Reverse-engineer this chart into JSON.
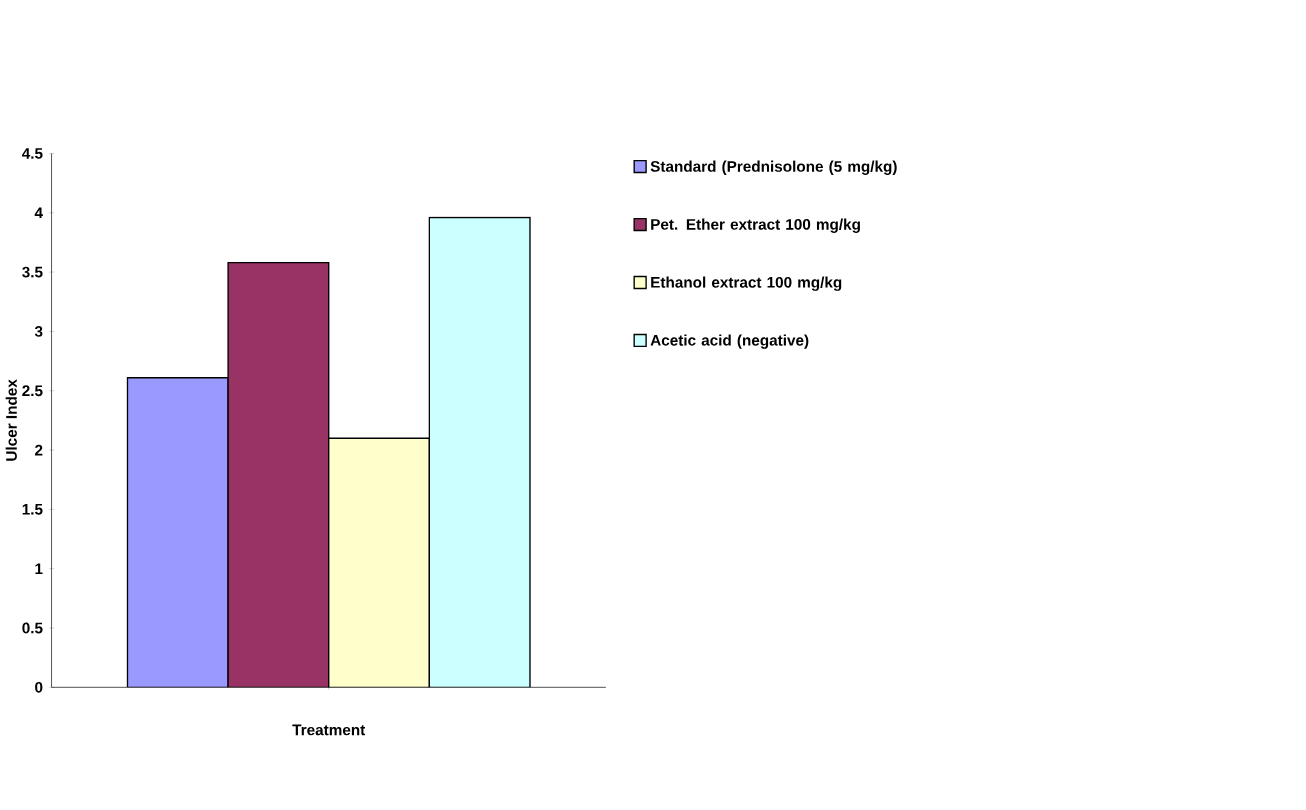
{
  "chart_data": {
    "type": "bar",
    "xlabel": "Treatment",
    "ylabel": "Ulcer Index",
    "categories": [
      null
    ],
    "series": [
      {
        "name": "Standard (Prednisolone (5 mg/kg)",
        "color": "#9999ff",
        "values": [
          2.61
        ]
      },
      {
        "name": "Pet. Ether extract 100 mg/kg",
        "color": "#993366",
        "values": [
          3.58
        ]
      },
      {
        "name": "Ethanol extract 100 mg/kg",
        "color": "#ffffcc",
        "values": [
          2.1
        ]
      },
      {
        "name": "Acetic acid (negative)",
        "color": "#ccffff",
        "values": [
          3.96
        ]
      }
    ],
    "ylim": [
      0,
      4.5
    ],
    "yticks": [
      0,
      0.5,
      1,
      1.5,
      2,
      2.5,
      3,
      3.5,
      4,
      4.5
    ],
    "legend": "right",
    "grid": false
  }
}
